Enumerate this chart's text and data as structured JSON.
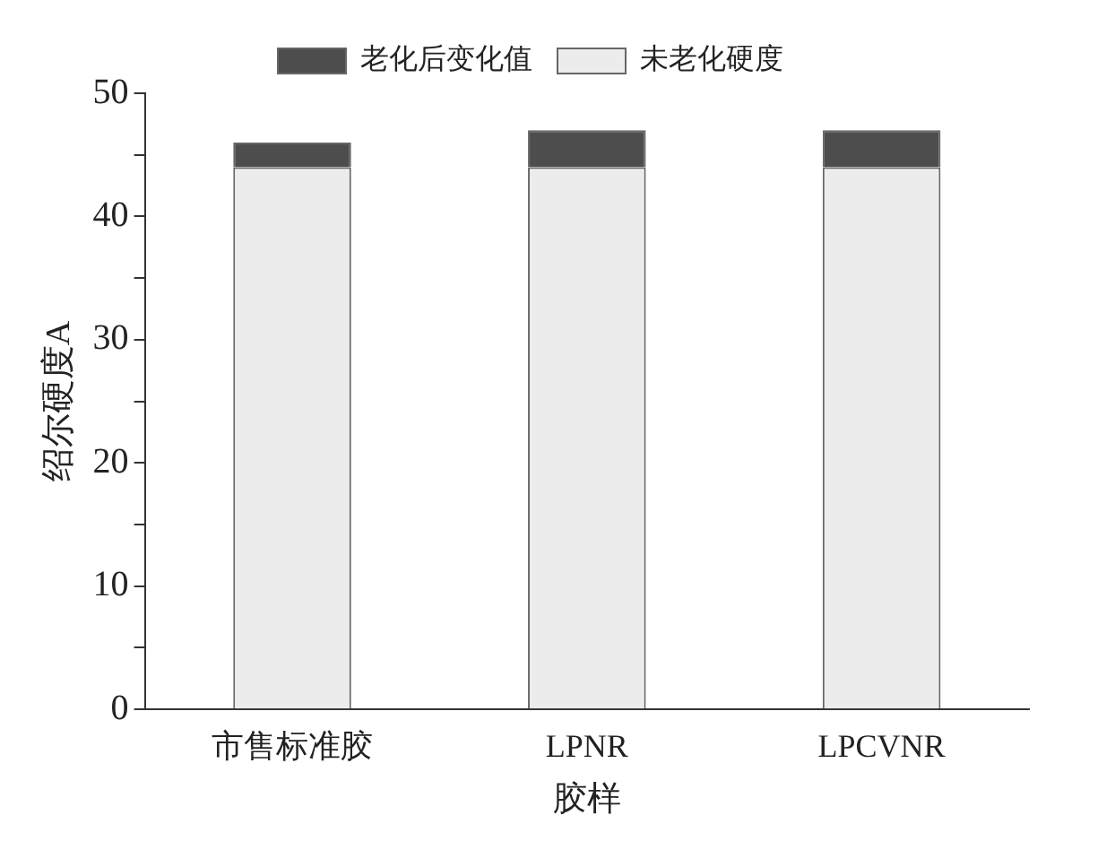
{
  "chart_data": {
    "type": "bar",
    "stacked": true,
    "xlabel": "胶样",
    "ylabel": "绍尔硬度A",
    "categories": [
      "市售标准胶",
      "LPNR",
      "LPCVNR"
    ],
    "series": [
      {
        "name": "未老化硬度",
        "color": "#ececec",
        "values": [
          44,
          44,
          44
        ]
      },
      {
        "name": "老化后变化值",
        "color": "#4d4d4d",
        "values": [
          2,
          3,
          3
        ]
      }
    ],
    "ylim": [
      0,
      50
    ],
    "yticks": [
      0,
      {
        "value": 5,
        "label": null
      },
      10,
      {
        "value": 15,
        "label": null
      },
      20,
      {
        "value": 25,
        "label": null
      },
      30,
      {
        "value": 35,
        "label": null
      },
      40,
      {
        "value": 45,
        "label": null
      },
      50
    ],
    "grid": false,
    "legend": "top"
  }
}
